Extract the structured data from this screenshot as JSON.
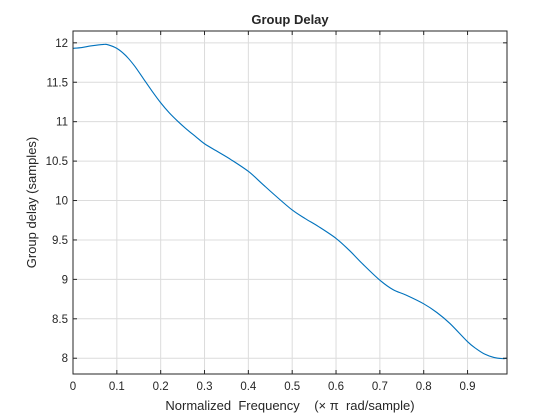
{
  "chart_data": {
    "type": "line",
    "title": "Group Delay",
    "xlabel": "Normalized  Frequency    (× π  rad/sample)",
    "ylabel": "Group delay (samples)",
    "xlim": [
      0,
      0.99
    ],
    "ylim": [
      7.8,
      12.15
    ],
    "xticks": [
      "0",
      "0.1",
      "0.2",
      "0.3",
      "0.4",
      "0.5",
      "0.6",
      "0.7",
      "0.8",
      "0.9"
    ],
    "yticks": [
      "8",
      "8.5",
      "9",
      "9.5",
      "10",
      "10.5",
      "11",
      "11.5",
      "12"
    ],
    "grid": true,
    "series": [
      {
        "color": "#0072bd",
        "x": [
          0,
          0.02,
          0.04,
          0.06,
          0.07,
          0.08,
          0.1,
          0.12,
          0.14,
          0.16,
          0.18,
          0.2,
          0.22,
          0.24,
          0.26,
          0.28,
          0.3,
          0.33,
          0.36,
          0.4,
          0.43,
          0.46,
          0.5,
          0.53,
          0.56,
          0.6,
          0.63,
          0.66,
          0.7,
          0.73,
          0.76,
          0.8,
          0.83,
          0.86,
          0.9,
          0.92,
          0.94,
          0.96,
          0.98,
          0.99
        ],
        "y": [
          11.93,
          11.94,
          11.96,
          11.975,
          11.98,
          11.975,
          11.93,
          11.84,
          11.71,
          11.55,
          11.39,
          11.24,
          11.11,
          11.0,
          10.9,
          10.81,
          10.72,
          10.62,
          10.52,
          10.37,
          10.22,
          10.07,
          9.88,
          9.77,
          9.67,
          9.52,
          9.37,
          9.2,
          8.99,
          8.87,
          8.8,
          8.69,
          8.58,
          8.44,
          8.21,
          8.12,
          8.05,
          8.01,
          7.995,
          8.0
        ]
      }
    ]
  }
}
